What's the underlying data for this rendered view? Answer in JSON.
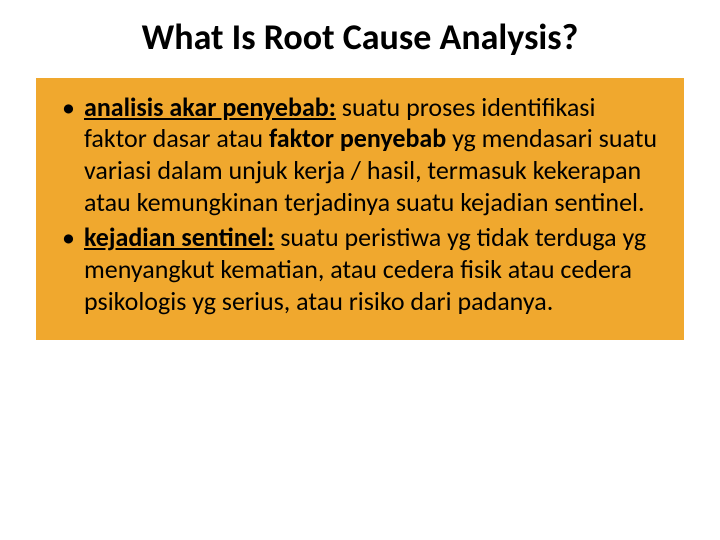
{
  "slide": {
    "title": "What Is Root Cause Analysis?",
    "background_color": "#ffffff",
    "title_fontsize": 36,
    "title_color": "#000000",
    "title_weight": 700,
    "content_box": {
      "background_color": "#f0a82e",
      "bullets": [
        {
          "term": "analisis akar penyebab:",
          "prefix": " suatu proses identifikasi faktor dasar atau ",
          "bold_mid": "faktor penyebab",
          "suffix": " yg mendasari suatu variasi dalam unjuk kerja / hasil, termasuk kekerapan atau kemungkinan terjadinya suatu kejadian sentinel."
        },
        {
          "term": "kejadian sentinel:",
          "text": " suatu peristiwa yg tidak terduga yg menyangkut kematian, atau cedera fisik atau cedera psikologis yg serius, atau risiko dari padanya."
        }
      ],
      "body_fontsize": 26,
      "body_color": "#000000"
    }
  }
}
